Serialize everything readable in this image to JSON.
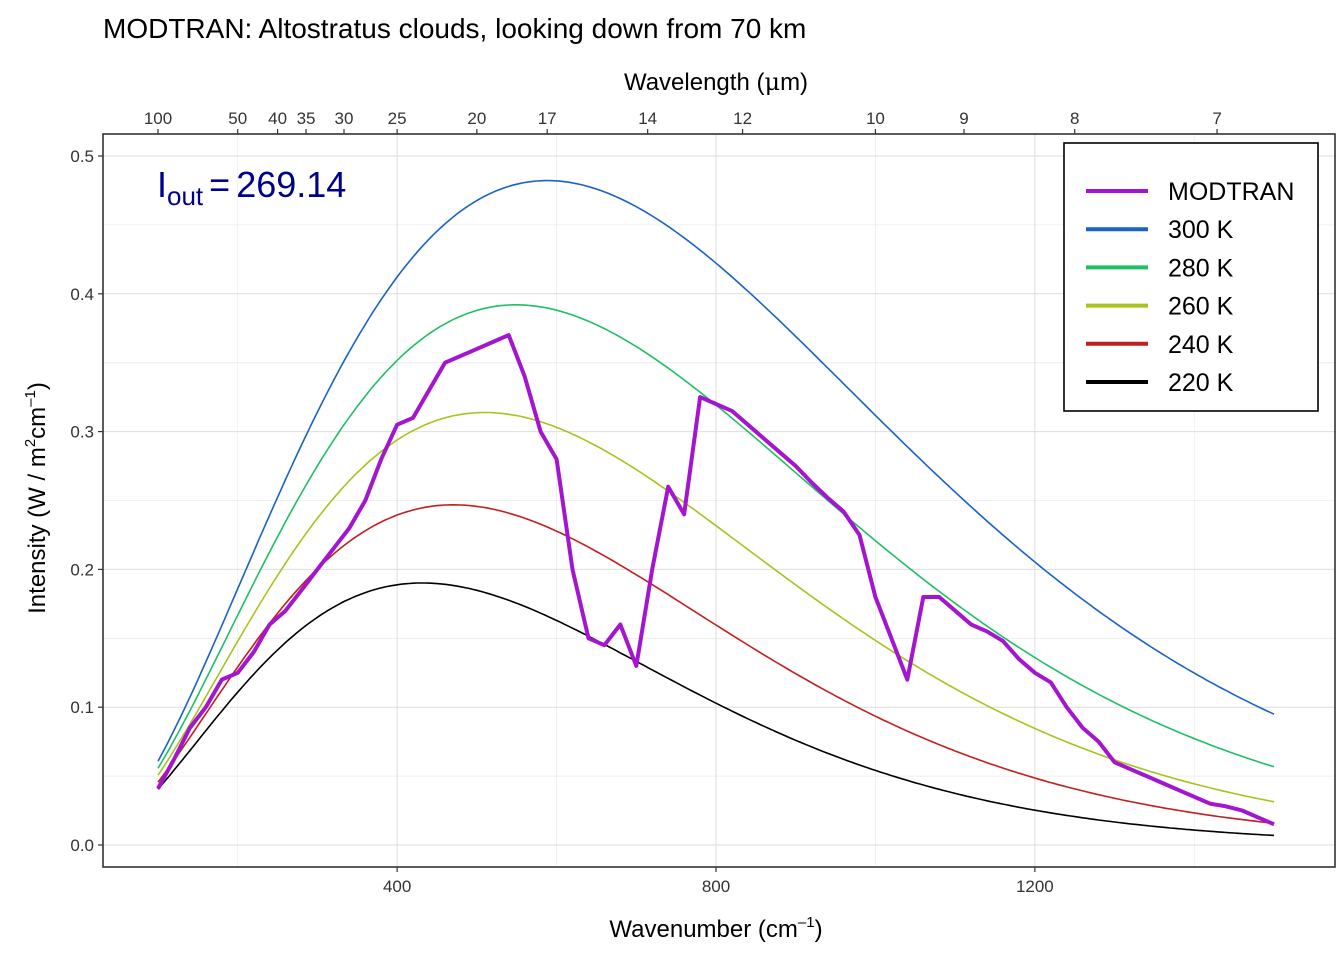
{
  "chart_data": {
    "type": "line",
    "title": "MODTRAN: Altostratus clouds, looking down from 70 km",
    "xlabel_main": "Wavenumber (cm",
    "xlabel_sup": "–1",
    "xlabel_end": ")",
    "xlabel_top_main": "Wavelength (",
    "xlabel_top_mu": "μ",
    "xlabel_top_end": "m)",
    "ylabel_main": "Intensity (W / m",
    "ylabel_sup1": "2",
    "ylabel_mid": "cm",
    "ylabel_sup2": "–1",
    "ylabel_end": ")",
    "xlim": [
      100,
      1500
    ],
    "ylim": [
      0,
      0.5
    ],
    "x_ticks": [
      400,
      800,
      1200
    ],
    "y_ticks": [
      "0.0",
      "0.1",
      "0.2",
      "0.3",
      "0.4",
      "0.5"
    ],
    "top_ticks": [
      "100",
      "50",
      "40",
      "35",
      "30",
      "25",
      "20",
      "17",
      "14",
      "12",
      "10",
      "9",
      "8",
      "7"
    ],
    "grid": true,
    "legend_position": "top-right",
    "annotation": {
      "label": "I",
      "subscript": "out",
      "equals": "=",
      "value": "269.14",
      "color": "#00008B"
    },
    "series": [
      {
        "name": "MODTRAN",
        "color": "#A415D0",
        "width": 4,
        "x": [
          100,
          120,
          140,
          160,
          180,
          200,
          220,
          240,
          260,
          280,
          300,
          320,
          340,
          360,
          380,
          400,
          420,
          440,
          460,
          480,
          500,
          520,
          540,
          560,
          580,
          600,
          620,
          640,
          660,
          680,
          700,
          720,
          740,
          760,
          780,
          800,
          820,
          840,
          860,
          880,
          900,
          920,
          940,
          960,
          980,
          1000,
          1020,
          1040,
          1060,
          1080,
          1100,
          1120,
          1140,
          1160,
          1180,
          1200,
          1220,
          1240,
          1260,
          1280,
          1300,
          1320,
          1340,
          1360,
          1380,
          1400,
          1420,
          1440,
          1460,
          1480,
          1500
        ],
        "y": [
          0.041,
          0.062,
          0.085,
          0.1,
          0.12,
          0.125,
          0.14,
          0.16,
          0.17,
          0.185,
          0.2,
          0.215,
          0.23,
          0.25,
          0.28,
          0.305,
          0.31,
          0.33,
          0.35,
          0.355,
          0.36,
          0.365,
          0.37,
          0.34,
          0.3,
          0.28,
          0.2,
          0.15,
          0.145,
          0.16,
          0.13,
          0.2,
          0.26,
          0.24,
          0.325,
          0.32,
          0.315,
          0.305,
          0.295,
          0.285,
          0.275,
          0.263,
          0.252,
          0.242,
          0.225,
          0.18,
          0.15,
          0.12,
          0.18,
          0.18,
          0.17,
          0.16,
          0.155,
          0.148,
          0.135,
          0.125,
          0.118,
          0.1,
          0.085,
          0.075,
          0.06,
          0.055,
          0.05,
          0.045,
          0.04,
          0.035,
          0.03,
          0.028,
          0.025,
          0.02,
          0.015
        ]
      },
      {
        "name": "300 K",
        "color": "#1A62C8",
        "width": 1.6,
        "temperature": 300
      },
      {
        "name": "280 K",
        "color": "#1FBF63",
        "width": 1.6,
        "temperature": 280
      },
      {
        "name": "260 K",
        "color": "#A8C31E",
        "width": 1.6,
        "temperature": 260
      },
      {
        "name": "240 K",
        "color": "#C41E1E",
        "width": 1.6,
        "temperature": 240
      },
      {
        "name": "220 K",
        "color": "#000000",
        "width": 1.6,
        "temperature": 220
      }
    ]
  }
}
